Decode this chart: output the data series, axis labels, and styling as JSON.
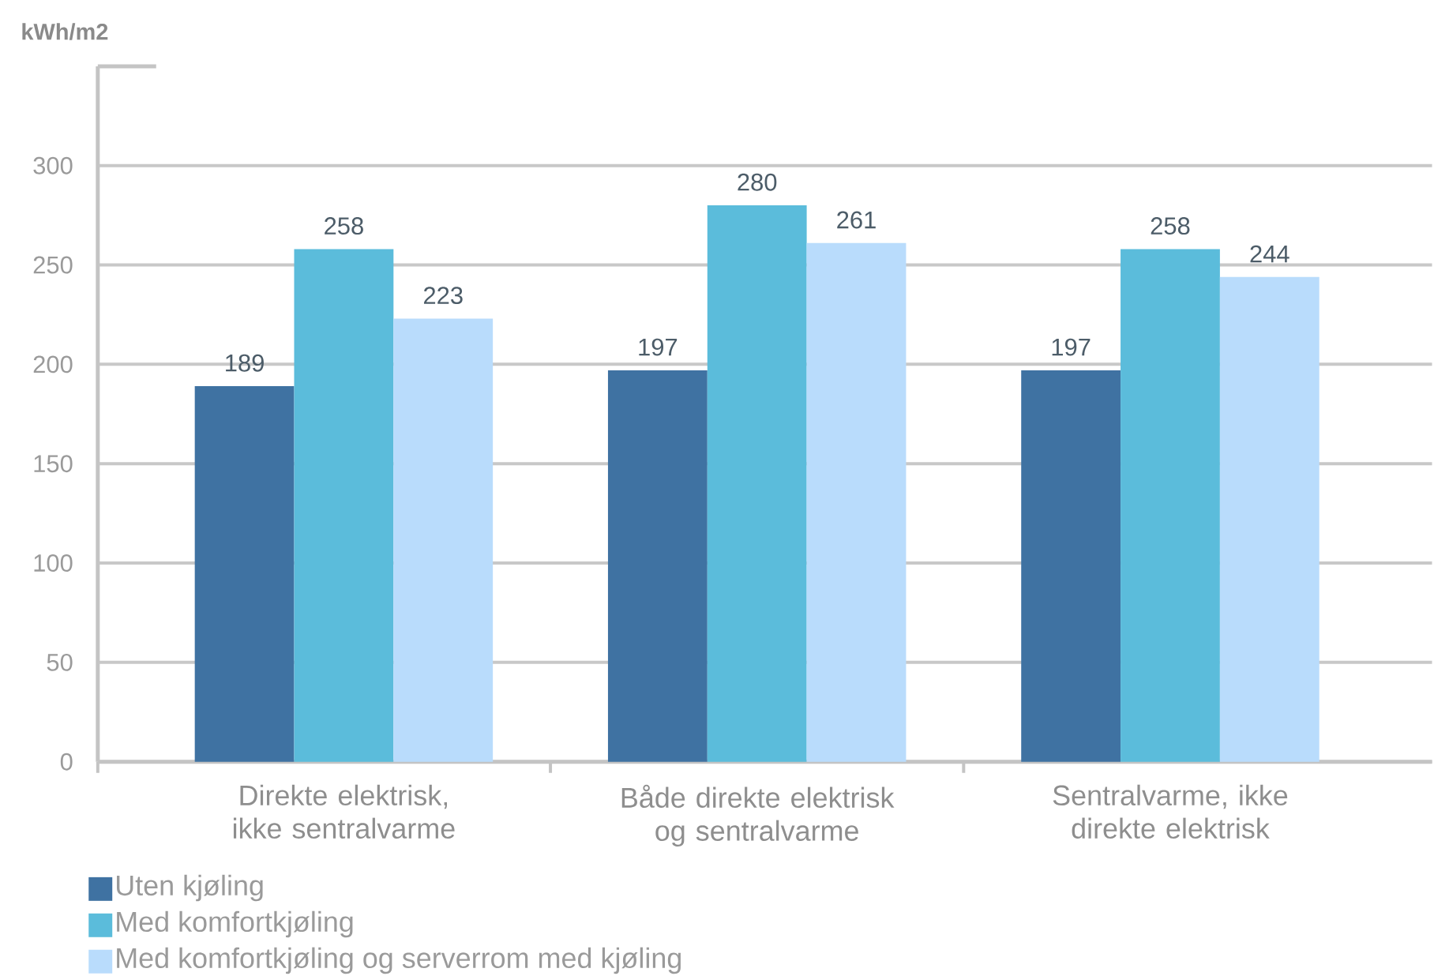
{
  "chart_data": {
    "type": "bar",
    "ylabel": "kWh/m2",
    "categories": [
      "Direkte elektrisk, ikke sentralvarme",
      "Både direkte elektrisk og sentralvarme",
      "Sentralvarme, ikke direkte elektrisk"
    ],
    "series": [
      {
        "name": "Uten kjøling",
        "color": "#3f72a2",
        "values": [
          189,
          197,
          197
        ]
      },
      {
        "name": "Med komfortkjøling",
        "color": "#5bbcdb",
        "values": [
          258,
          280,
          258
        ]
      },
      {
        "name": "Med komfortkjøling og serverrom med kjøling",
        "color": "#b9dcfc",
        "values": [
          223,
          261,
          244
        ]
      }
    ],
    "ylim": [
      0,
      350
    ],
    "yticks": [
      0,
      50,
      100,
      150,
      200,
      250,
      300
    ],
    "grid": "y",
    "legend": "bottom left",
    "data_labels": true
  }
}
